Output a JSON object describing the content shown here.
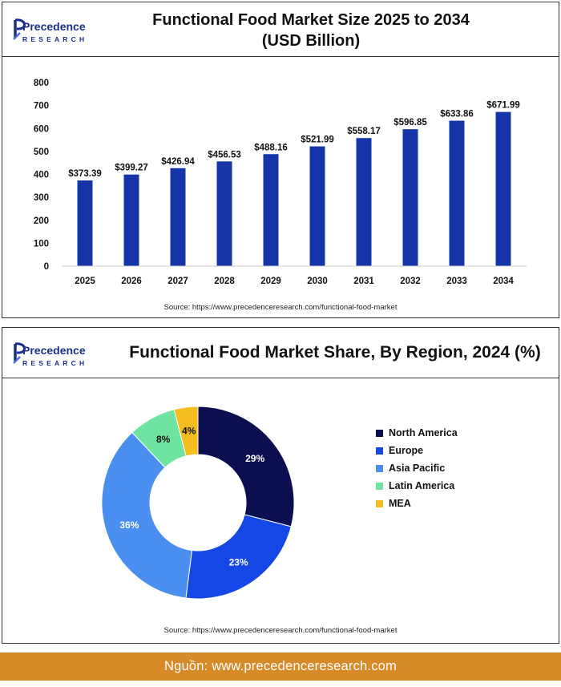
{
  "brand": {
    "name_line1": "Precedence",
    "name_line2": "RESEARCH",
    "colors": {
      "primary": "#1a2f8c",
      "accent": "#4a6fd6"
    }
  },
  "bar_chart": {
    "title_line1": "Functional Food Market Size 2025 to 2034",
    "title_line2": "(USD Billion)",
    "source": "Source: https://www.precedenceresearch.com/functional-food-market"
  },
  "pie_chart": {
    "title": "Functional Food Market Share, By Region, 2024 (%)",
    "source": "Source: https://www.precedenceresearch.com/functional-food-market"
  },
  "footer": {
    "text": "Nguồn: www.precedenceresearch.com"
  },
  "chart_data": [
    {
      "type": "bar",
      "title": "Functional Food Market Size 2025 to 2034 (USD Billion)",
      "categories": [
        "2025",
        "2026",
        "2027",
        "2028",
        "2029",
        "2030",
        "2031",
        "2032",
        "2033",
        "2034"
      ],
      "values": [
        373.39,
        399.27,
        426.94,
        456.53,
        488.16,
        521.99,
        558.17,
        596.85,
        633.86,
        671.99
      ],
      "value_labels": [
        "$373.39",
        "$399.27",
        "$426.94",
        "$456.53",
        "$488.16",
        "$521.99",
        "$558.17",
        "$596.85",
        "$633.86",
        "$671.99"
      ],
      "y_ticks": [
        "0",
        "100",
        "200",
        "300",
        "400",
        "500",
        "600",
        "700",
        "800"
      ],
      "ylim": [
        0,
        800
      ],
      "grid": false,
      "bar_color": "#1534a8"
    },
    {
      "type": "pie",
      "subtype": "donut",
      "title": "Functional Food Market Share, By Region, 2024 (%)",
      "categories": [
        "North America",
        "Europe",
        "Asia Pacific",
        "Latin America",
        "MEA"
      ],
      "values": [
        29,
        23,
        36,
        8,
        4
      ],
      "value_labels": [
        "29%",
        "23%",
        "36%",
        "8%",
        "4%"
      ],
      "colors": [
        "#0b0e4f",
        "#1447e6",
        "#4a8ff0",
        "#6fe3a0",
        "#f5bd1f"
      ],
      "label_colors": [
        "#ffffff",
        "#ffffff",
        "#ffffff",
        "#111111",
        "#111111"
      ],
      "legend_position": "right"
    }
  ]
}
